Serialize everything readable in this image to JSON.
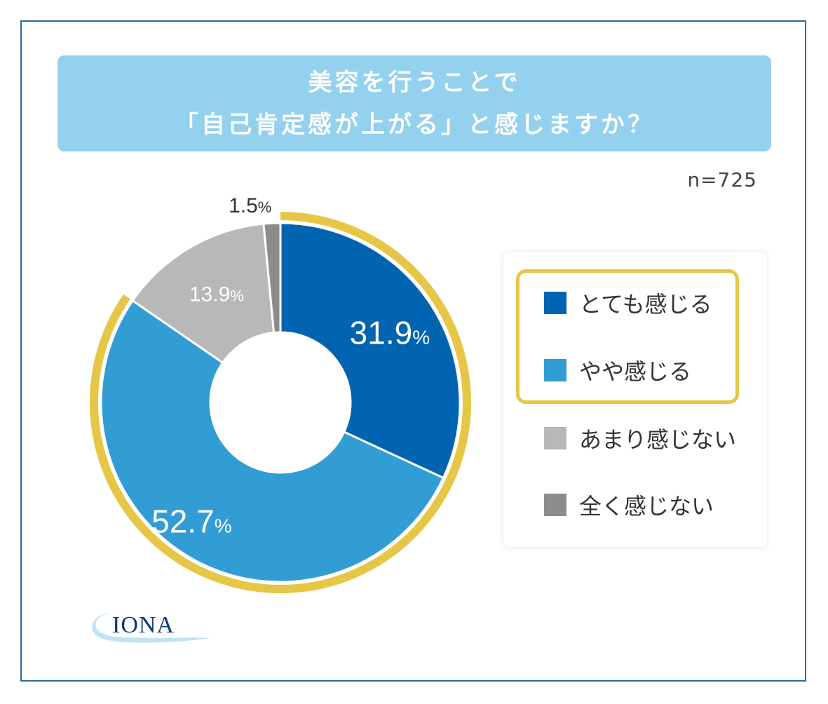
{
  "title": {
    "line1": "美容を行うことで",
    "line2": "「自己肯定感が上がる」と感じますか？"
  },
  "sample_size": "n=725",
  "logo": {
    "text": "IONA"
  },
  "colors": {
    "frame": "#2f6b9a",
    "title_bg": "#93d1ee",
    "highlight_ring": "#e6c646",
    "strongly": "#0064b0",
    "somewhat": "#319dd4",
    "not_much": "#b8b8b8",
    "not_at_all": "#8c8c8c"
  },
  "chart_data": {
    "type": "pie",
    "donut": true,
    "categories": [
      "とても感じる",
      "やや感じる",
      "あまり感じない",
      "全く感じない"
    ],
    "values": [
      31.9,
      52.7,
      13.9,
      1.5
    ],
    "value_labels": [
      "31.9",
      "52.7",
      "13.9",
      "1.5"
    ],
    "unit": "%",
    "colors": [
      "#0064b0",
      "#319dd4",
      "#b8b8b8",
      "#8c8c8c"
    ],
    "highlighted_categories": [
      "とても感じる",
      "やや感じる"
    ],
    "legend_position": "right"
  }
}
